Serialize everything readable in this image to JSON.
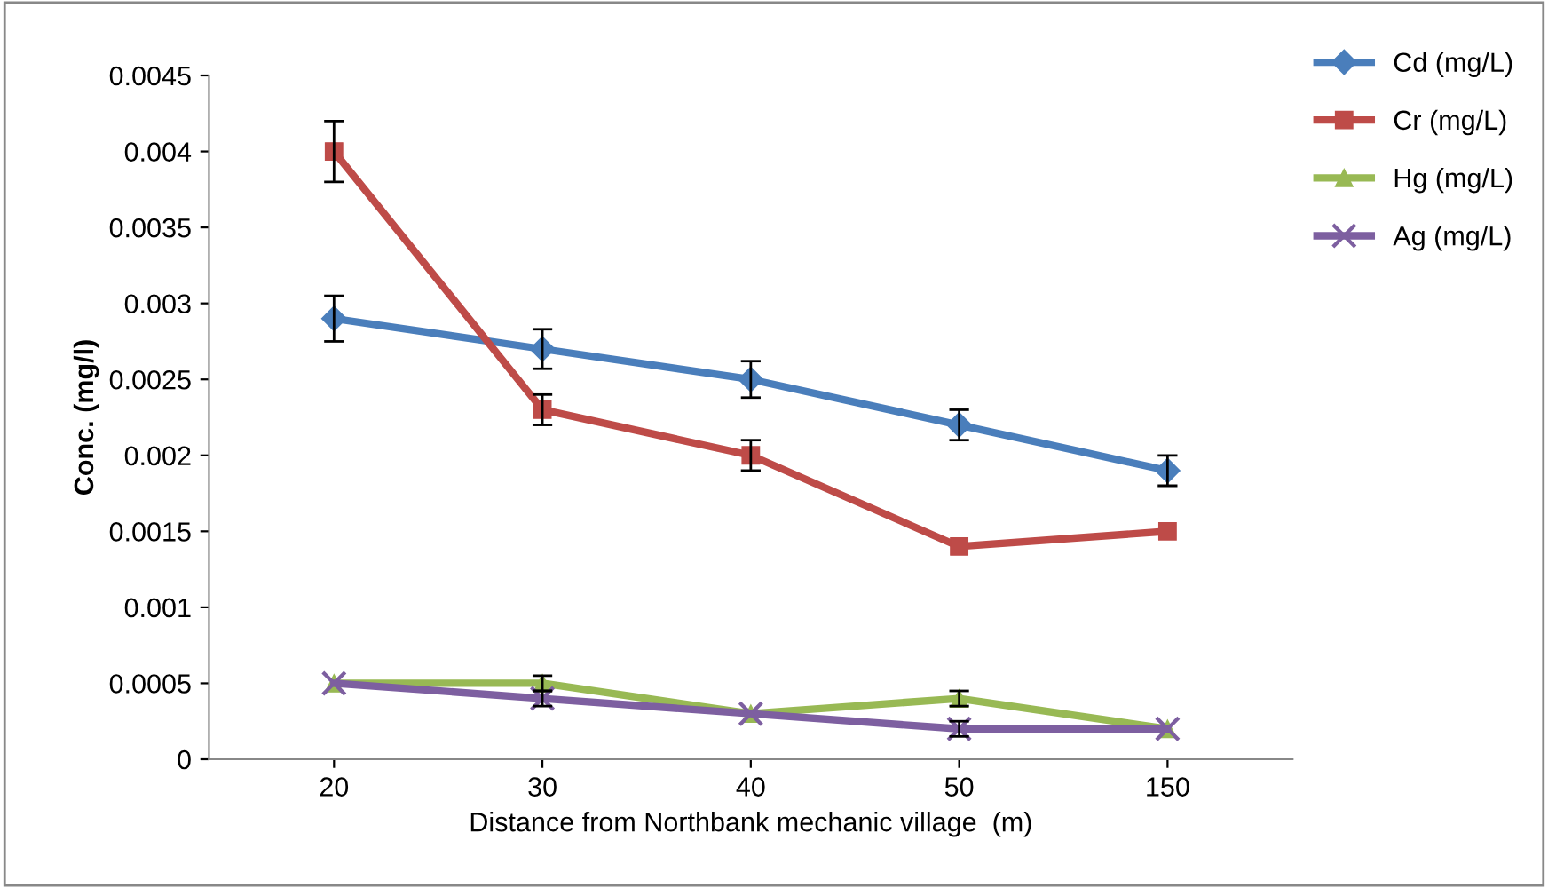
{
  "chart_data": {
    "type": "line",
    "xlabel": "Distance from Northbank mechanic village  (m)",
    "ylabel": "Conc. (mg/l)",
    "categories": [
      "20",
      "30",
      "40",
      "50",
      "150"
    ],
    "ylim": [
      0,
      0.0045
    ],
    "yticks": [
      {
        "value": 0,
        "label": "0"
      },
      {
        "value": 0.0005,
        "label": "0.0005"
      },
      {
        "value": 0.001,
        "label": "0.001"
      },
      {
        "value": 0.0015,
        "label": "0.0015"
      },
      {
        "value": 0.002,
        "label": "0.002"
      },
      {
        "value": 0.0025,
        "label": "0.0025"
      },
      {
        "value": 0.003,
        "label": "0.003"
      },
      {
        "value": 0.0035,
        "label": "0.0035"
      },
      {
        "value": 0.004,
        "label": "0.004"
      },
      {
        "value": 0.0045,
        "label": "0.0045"
      }
    ],
    "grid": false,
    "legend": "right",
    "series": [
      {
        "name": "Cd (mg/L)",
        "color": "#4a7ebb",
        "marker": "diamond",
        "values": [
          0.0029,
          0.0027,
          0.0025,
          0.0022,
          0.0019
        ],
        "errors": [
          0.00015,
          0.00013,
          0.00012,
          0.0001,
          0.0001
        ]
      },
      {
        "name": "Cr (mg/L)",
        "color": "#be4b48",
        "marker": "square",
        "values": [
          0.004,
          0.0023,
          0.002,
          0.0014,
          0.0015
        ],
        "errors": [
          0.0002,
          0.0001,
          0.0001,
          null,
          null
        ]
      },
      {
        "name": "Hg (mg/L)",
        "color": "#98b954",
        "marker": "triangle",
        "values": [
          0.0005,
          0.0005,
          0.0003,
          0.0004,
          0.0002
        ],
        "errors": [
          null,
          5e-05,
          null,
          5e-05,
          null
        ]
      },
      {
        "name": "Ag (mg/L)",
        "color": "#7d5fa0",
        "marker": "cross",
        "values": [
          0.0005,
          0.0004,
          0.0003,
          0.0002,
          0.0002
        ],
        "errors": [
          null,
          5e-05,
          null,
          5e-05,
          null
        ]
      }
    ]
  }
}
